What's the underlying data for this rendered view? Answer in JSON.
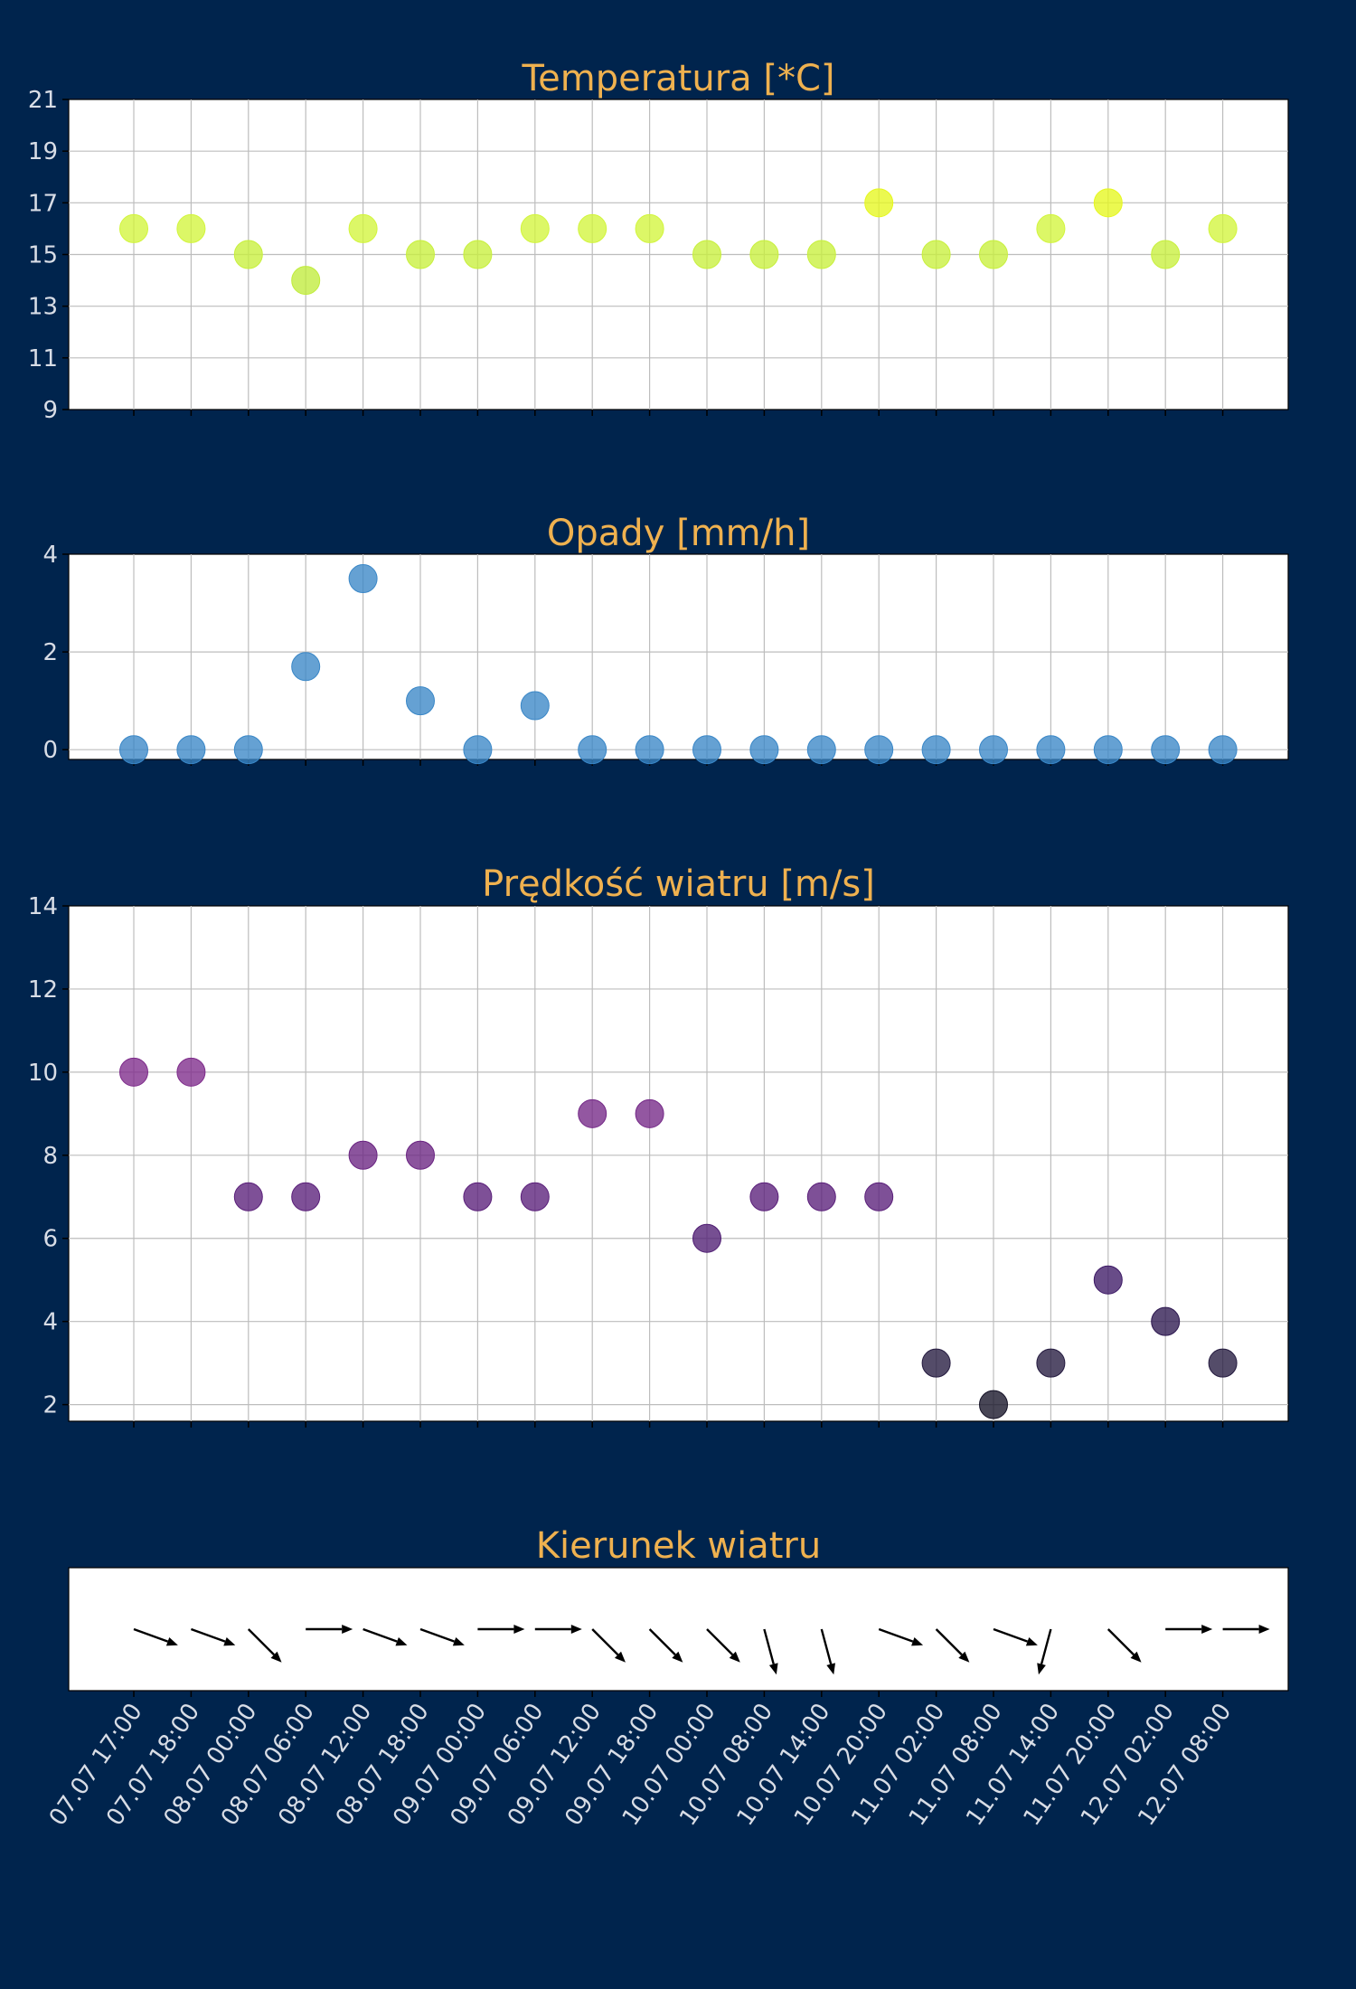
{
  "chart_data": [
    {
      "type": "scatter",
      "title": "Temperatura [*C]",
      "ylim": [
        9,
        21
      ],
      "yticks": [
        9,
        11,
        13,
        15,
        17,
        19,
        21
      ],
      "grid": true,
      "values": [
        16,
        16,
        15,
        14,
        16,
        15,
        15,
        16,
        16,
        16,
        15,
        15,
        15,
        17,
        15,
        15,
        16,
        17,
        15,
        16
      ],
      "colors": [
        "#d2f53c",
        "#d2f53c",
        "#c8f03c",
        "#c0ec3c",
        "#d2f53c",
        "#c8f03c",
        "#c8f03c",
        "#d2f53c",
        "#d2f53c",
        "#d2f53c",
        "#c8f03c",
        "#c8f03c",
        "#c8f03c",
        "#e6f71f",
        "#c8f03c",
        "#c8f03c",
        "#d2f53c",
        "#e6f71f",
        "#c8f03c",
        "#d2f53c"
      ]
    },
    {
      "type": "scatter",
      "title": "Opady [mm/h]",
      "ylim": [
        -0.2,
        4
      ],
      "yticks": [
        0,
        2,
        4
      ],
      "grid": true,
      "values": [
        0,
        0,
        0,
        1.7,
        3.5,
        1.0,
        0,
        0.9,
        0,
        0,
        0,
        0,
        0,
        0,
        0,
        0,
        0,
        0,
        0,
        0
      ],
      "colors": [
        "#3a87c7"
      ]
    },
    {
      "type": "scatter",
      "title": "Prędkość wiatru [m/s]",
      "ylim": [
        1.6,
        14
      ],
      "yticks": [
        2,
        4,
        6,
        8,
        10,
        12,
        14
      ],
      "grid": true,
      "values": [
        10,
        10,
        7,
        7,
        8,
        8,
        7,
        7,
        9,
        9,
        6,
        7,
        7,
        7,
        3,
        2,
        3,
        5,
        4,
        3
      ],
      "colors": [
        "#7d2a8a",
        "#7d2a8a",
        "#5a1f7a",
        "#5a1f7a",
        "#6a2482",
        "#6a2482",
        "#5a1f7a",
        "#5a1f7a",
        "#742887",
        "#742887",
        "#4f1d73",
        "#5a1f7a",
        "#5a1f7a",
        "#5a1f7a",
        "#241a3f",
        "#151226",
        "#241a3f",
        "#3d1a66",
        "#2d1850",
        "#241a3f"
      ]
    },
    {
      "type": "quiver",
      "title": "Kierunek wiatru",
      "directions_deg": [
        20,
        20,
        45,
        0,
        20,
        20,
        0,
        0,
        45,
        45,
        45,
        75,
        75,
        20,
        45,
        20,
        105,
        45,
        0,
        0
      ],
      "colors": [
        "#000000"
      ]
    }
  ],
  "x_labels": [
    "07.07 17:00",
    "07.07 18:00",
    "08.07 00:00",
    "08.07 06:00",
    "08.07 12:00",
    "08.07 18:00",
    "09.07 00:00",
    "09.07 06:00",
    "09.07 12:00",
    "09.07 18:00",
    "10.07 00:00",
    "10.07 08:00",
    "10.07 14:00",
    "10.07 20:00",
    "11.07 02:00",
    "11.07 08:00",
    "11.07 14:00",
    "11.07 20:00",
    "12.07 02:00",
    "12.07 08:00"
  ]
}
